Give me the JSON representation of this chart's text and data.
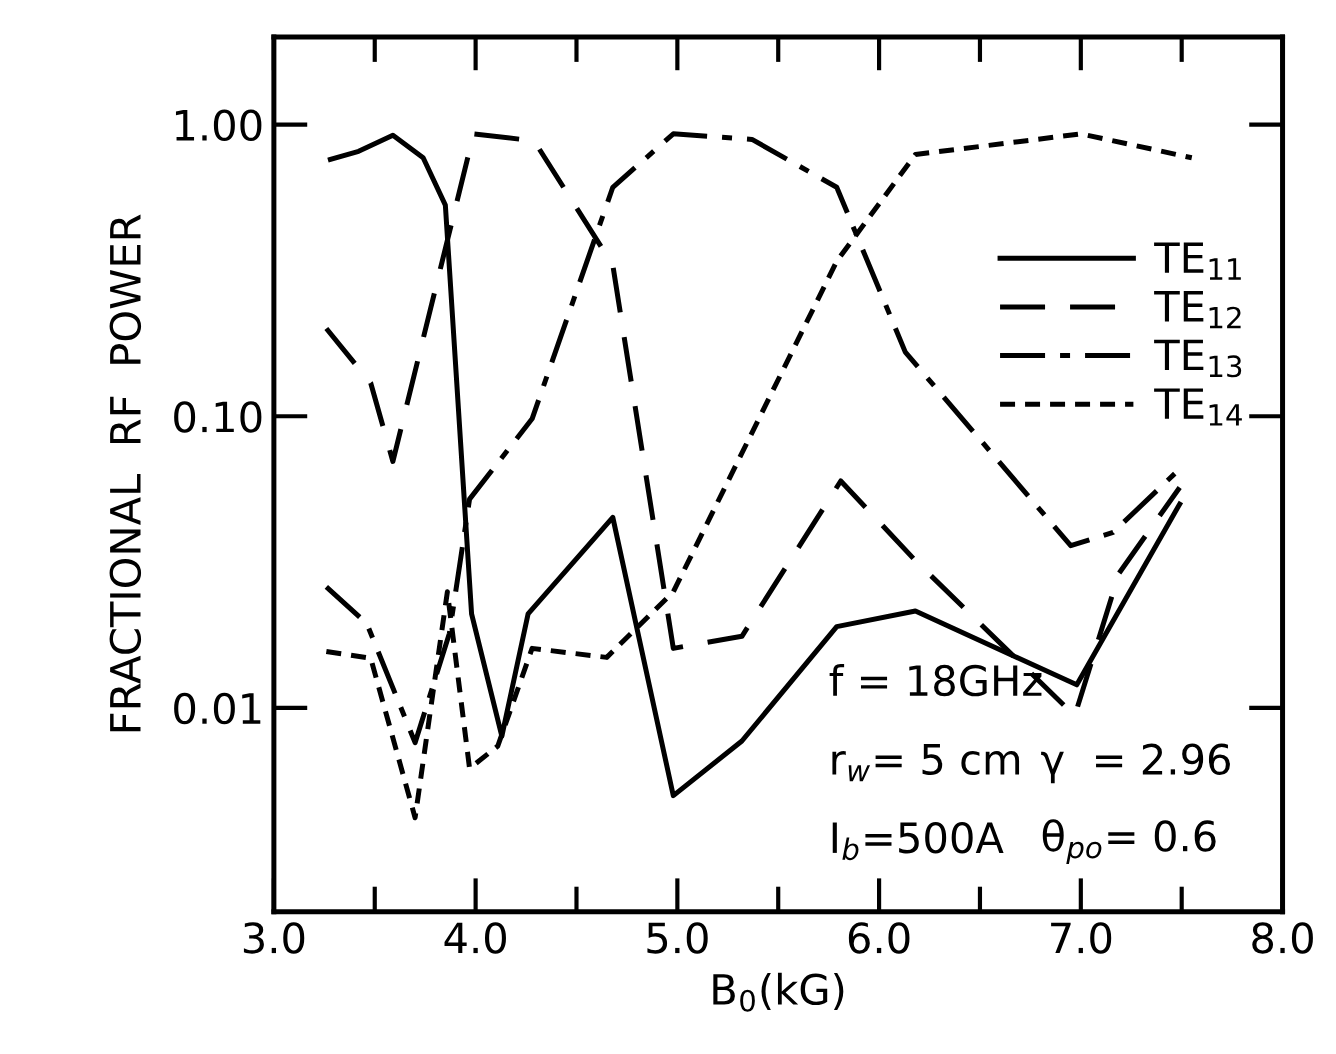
{
  "chart_data": {
    "type": "line",
    "xlabel": "B$_{0}$(kG)",
    "ylabel": "FRACTIONAL  RF  POWER",
    "log": "y",
    "grid": false,
    "legend": "right",
    "xlim": [
      3.0,
      8.0
    ],
    "xticks": [
      {
        "value": 3.0,
        "label": "3.0"
      },
      {
        "value": 3.5,
        "label": null
      },
      {
        "value": 4.0,
        "label": "4.0"
      },
      {
        "value": 4.5,
        "label": null
      },
      {
        "value": 5.0,
        "label": "5.0"
      },
      {
        "value": 5.5,
        "label": null
      },
      {
        "value": 6.0,
        "label": "6.0"
      },
      {
        "value": 6.5,
        "label": null
      },
      {
        "value": 7.0,
        "label": "7.0"
      },
      {
        "value": 7.5,
        "label": null
      },
      {
        "value": 8.0,
        "label": "8.0"
      }
    ],
    "ylim": [
      0.002,
      2.0
    ],
    "yticks": [
      {
        "value": 0.01,
        "label": "0.01"
      },
      {
        "value": 0.1,
        "label": "0.10"
      },
      {
        "value": 1.0,
        "label": "1.00"
      }
    ],
    "series": [
      {
        "name": "TE$_{11}$",
        "color": "#000000",
        "line_style": "solid",
        "x": [
          3.28,
          3.42,
          3.59,
          3.74,
          3.85,
          3.98,
          4.13,
          4.26,
          4.68,
          4.98,
          5.32,
          5.79,
          6.18,
          6.98,
          7.49
        ],
        "values": [
          0.76,
          0.81,
          0.92,
          0.77,
          0.53,
          0.021,
          0.008,
          0.021,
          0.045,
          0.005,
          0.0077,
          0.019,
          0.0215,
          0.012,
          0.05
        ]
      },
      {
        "name": "TE$_{12}$",
        "color": "#000000",
        "line_style": "dashed",
        "x": [
          3.26,
          3.48,
          3.59,
          3.99,
          4.29,
          4.68,
          4.98,
          5.32,
          5.81,
          6.18,
          6.97,
          7.19,
          7.49
        ],
        "values": [
          0.2,
          0.13,
          0.07,
          0.93,
          0.88,
          0.33,
          0.016,
          0.0176,
          0.06,
          0.032,
          0.0094,
          0.029,
          0.057
        ]
      },
      {
        "name": "TE$_{13}$",
        "color": "#000000",
        "line_style": "dashdot",
        "x": [
          3.26,
          3.46,
          3.7,
          3.87,
          3.97,
          4.28,
          4.68,
          4.98,
          5.37,
          5.79,
          6.13,
          6.95,
          7.16,
          7.47
        ],
        "values": [
          0.026,
          0.0195,
          0.0076,
          0.018,
          0.052,
          0.098,
          0.61,
          0.93,
          0.89,
          0.61,
          0.166,
          0.036,
          0.04,
          0.064
        ]
      },
      {
        "name": "TE$_{14}$",
        "color": "#000000",
        "line_style": "dotted",
        "x": [
          3.26,
          3.48,
          3.7,
          3.86,
          3.97,
          4.11,
          4.28,
          4.65,
          4.98,
          5.79,
          6.18,
          7.0,
          7.55
        ],
        "values": [
          0.0156,
          0.0148,
          0.0042,
          0.025,
          0.0062,
          0.0074,
          0.016,
          0.0149,
          0.025,
          0.34,
          0.79,
          0.93,
          0.77
        ]
      }
    ],
    "annotations": [
      "f = 18GHz",
      "r$_{w}$= 5 cm",
      "I$_{b}$=500A",
      "γ  = 2.96",
      "θ$_{po}$= 0.6"
    ]
  }
}
